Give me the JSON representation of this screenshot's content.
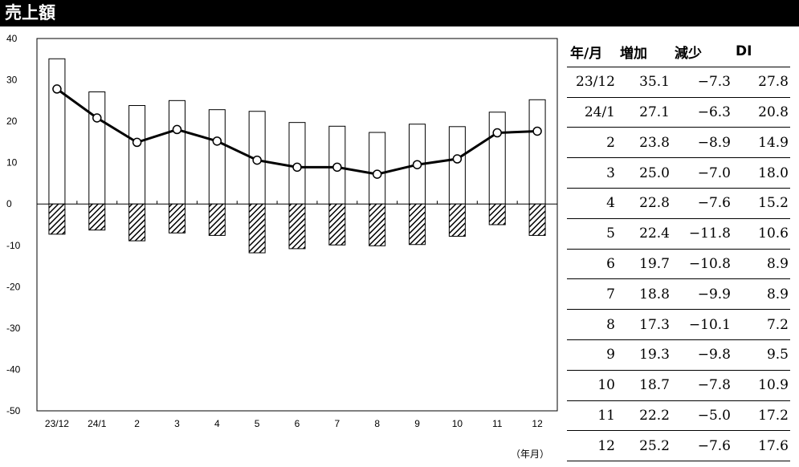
{
  "header": {
    "title": "売上額"
  },
  "chart_data": {
    "type": "bar",
    "categories": [
      "23/12",
      "24/1",
      "2",
      "3",
      "4",
      "5",
      "6",
      "7",
      "8",
      "9",
      "10",
      "11",
      "12"
    ],
    "series": [
      {
        "name": "増加",
        "type": "bar",
        "values": [
          35.1,
          27.1,
          23.8,
          25.0,
          22.8,
          22.4,
          19.7,
          18.8,
          17.3,
          19.3,
          18.7,
          22.2,
          25.2
        ],
        "fill": "#ffffff"
      },
      {
        "name": "減少",
        "type": "bar",
        "values": [
          -7.3,
          -6.3,
          -8.9,
          -7.0,
          -7.6,
          -11.8,
          -10.8,
          -9.9,
          -10.1,
          -9.8,
          -7.8,
          -5.0,
          -7.6
        ],
        "fill": "hatch"
      },
      {
        "name": "DI",
        "type": "line",
        "values": [
          27.8,
          20.8,
          14.9,
          18.0,
          15.2,
          10.6,
          8.9,
          8.9,
          7.2,
          9.5,
          10.9,
          17.2,
          17.6
        ],
        "marker": "circle"
      }
    ],
    "ylim": [
      -50,
      40
    ],
    "yticks": [
      40,
      30,
      20,
      10,
      0,
      -10,
      -20,
      -30,
      -40,
      -50
    ],
    "xlabel_note": "（年月）",
    "grid": false,
    "colors": {
      "bar_stroke": "#000000",
      "line": "#000000",
      "marker_fill": "#ffffff"
    }
  },
  "table": {
    "headers": [
      "年/月",
      "増加",
      "減少",
      "DI"
    ],
    "rows": [
      [
        "23/12",
        "35.1",
        "−7.3",
        "27.8"
      ],
      [
        "24/1",
        "27.1",
        "−6.3",
        "20.8"
      ],
      [
        "2",
        "23.8",
        "−8.9",
        "14.9"
      ],
      [
        "3",
        "25.0",
        "−7.0",
        "18.0"
      ],
      [
        "4",
        "22.8",
        "−7.6",
        "15.2"
      ],
      [
        "5",
        "22.4",
        "−11.8",
        "10.6"
      ],
      [
        "6",
        "19.7",
        "−10.8",
        "8.9"
      ],
      [
        "7",
        "18.8",
        "−9.9",
        "8.9"
      ],
      [
        "8",
        "17.3",
        "−10.1",
        "7.2"
      ],
      [
        "9",
        "19.3",
        "−9.8",
        "9.5"
      ],
      [
        "10",
        "18.7",
        "−7.8",
        "10.9"
      ],
      [
        "11",
        "22.2",
        "−5.0",
        "17.2"
      ],
      [
        "12",
        "25.2",
        "−7.6",
        "17.6"
      ]
    ]
  }
}
